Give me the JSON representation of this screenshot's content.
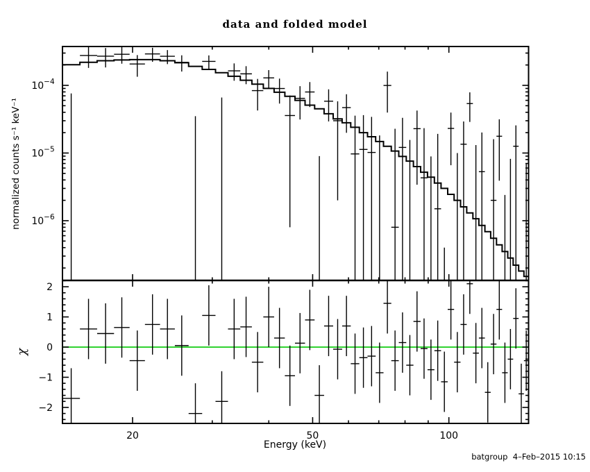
{
  "header": {
    "title": "data and folded model"
  },
  "footer": {
    "credit": "batgroup  4–Feb–2015 10:15"
  },
  "chart_data": {
    "type": "scatter",
    "subtype": "xspec-spectrum-with-chi-residuals",
    "title": "data and folded model",
    "xlabel": "Energy (keV)",
    "ylabel_top": "normalized counts s⁻¹ keV⁻¹",
    "ylabel_bottom": "χ",
    "x_scale": "log",
    "x_range_kev": [
      14,
      150
    ],
    "x_ticks_labeled": [
      20,
      50,
      100
    ],
    "x_ticks_minor": [
      30,
      40,
      60,
      70,
      80,
      90
    ],
    "y_top_scale": "log",
    "y_top_range": [
      1.31e-07,
      0.000375
    ],
    "y_top_decade_exponents": [
      -4,
      -5,
      -6
    ],
    "y_bottom_range": [
      -2.53,
      2.21
    ],
    "y_bottom_ticks_labeled": [
      -2,
      -1,
      0,
      1,
      2
    ],
    "y_bottom_minor_step": 0.2,
    "grid": "off",
    "legend": "none",
    "foreground_color": "#000000",
    "background_color": "#ffffff",
    "zero_line_color": "#00c800",
    "chi_error_halfwidth": 1.0,
    "series_description": {
      "model": "folded model, stepped histogram, top panel",
      "data": "spectrum data points, crosses with error bars, top panel",
      "chi": "(data-model)/error residuals, bottom panel"
    },
    "bins": {
      "e_lo": [
        14.0,
        15.3,
        16.7,
        18.2,
        19.7,
        21.3,
        23.0,
        24.8,
        26.6,
        28.5,
        30.5,
        32.5,
        34.6,
        36.7,
        38.9,
        41.1,
        43.4,
        45.7,
        48.1,
        50.5,
        53.0,
        55.5,
        58.1,
        60.7,
        63.4,
        66.1,
        68.9,
        71.7,
        74.6,
        77.5,
        80.5,
        83.5,
        86.6,
        89.7,
        92.9,
        96.1,
        99.4,
        102.7,
        106.1,
        109.5,
        113.0,
        116.5,
        120.1,
        123.7,
        127.4,
        131.1,
        134.9,
        138.7,
        142.6,
        146.5
      ],
      "e_hi": [
        15.3,
        16.7,
        18.2,
        19.7,
        21.3,
        23.0,
        24.8,
        26.6,
        28.5,
        30.5,
        32.5,
        34.6,
        36.7,
        38.9,
        41.1,
        43.4,
        45.7,
        48.1,
        50.5,
        53.0,
        55.5,
        58.1,
        60.7,
        63.4,
        66.1,
        68.9,
        71.7,
        74.6,
        77.5,
        80.5,
        83.5,
        86.6,
        89.7,
        92.9,
        96.1,
        99.4,
        102.7,
        106.1,
        109.5,
        113.0,
        116.5,
        120.1,
        123.7,
        127.4,
        131.1,
        134.9,
        138.7,
        142.6,
        146.5,
        150.0
      ],
      "model": [
        0.000202,
        0.000219,
        0.000231,
        0.000237,
        0.00024,
        0.00024,
        0.000231,
        0.000216,
        0.000191,
        0.000172,
        0.000154,
        0.000136,
        0.000119,
        0.000104,
        9e-05,
        7.9e-05,
        6.9e-05,
        6e-05,
        5.1e-05,
        4.5e-05,
        3.8e-05,
        3.2e-05,
        2.8e-05,
        2.4e-05,
        2e-05,
        1.74e-05,
        1.48e-05,
        1.26e-05,
        1.07e-05,
        8.9e-06,
        7.6e-06,
        6.3e-06,
        5.2e-06,
        4.4e-06,
        3.6e-06,
        3e-06,
        2.45e-06,
        2e-06,
        1.6e-06,
        1.3e-06,
        1.07e-06,
        8.5e-07,
        6.9e-07,
        5.5e-07,
        4.4e-07,
        3.5e-07,
        2.8e-07,
        2.2e-07,
        1.8e-07,
        1.5e-07
      ],
      "rate": [
        -0.000104,
        0.000276,
        0.00027,
        0.000288,
        0.000207,
        0.000291,
        0.000269,
        0.000219,
        -9.5e-05,
        0.000226,
        -4.4e-05,
        0.000164,
        0.000148,
        8.35e-05,
        0.000129,
        8.98e-05,
        3.58e-05,
        6.43e-05,
        7.98e-05,
        -5.1e-05,
        5.83e-05,
        3e-05,
        4.69e-05,
        9.7e-06,
        1.13e-05,
        1.02e-05,
        -4.8e-06,
        9.96e-05,
        8e-07,
        1.21e-05,
        -4.4e-06,
        2.29e-05,
        4.3e-06,
        -9.1e-06,
        1.5e-06,
        -1.66e-05,
        2.31e-05,
        -6e-06,
        1.35e-05,
        5.38e-05,
        -1.9e-06,
        5.3e-06,
        -2.11e-05,
        2e-06,
        1.77e-05,
        -1.11e-05,
        -5e-06,
        1.26e-05,
        -1.93e-05,
        -5.4e-06
      ],
      "err": [
        0.00018,
        9.5e-05,
        8.6e-05,
        7.9e-05,
        7.3e-05,
        6.8e-05,
        6.3e-05,
        5.9e-05,
        0.00013,
        5.1e-05,
        0.00011,
        4.7e-05,
        4.4e-05,
        4.1e-05,
        3.9e-05,
        3.6e-05,
        3.5e-05,
        3.3e-05,
        3.2e-05,
        6e-05,
        2.9e-05,
        2.8e-05,
        2.7e-05,
        2.6e-05,
        2.5e-05,
        2.4e-05,
        2.3e-05,
        6e-05,
        2.2e-05,
        2.1e-05,
        2e-05,
        1.95e-05,
        1.9e-05,
        1.8e-05,
        1.77e-05,
        1.7e-05,
        1.65e-05,
        1.6e-05,
        1.58e-05,
        2.5e-05,
        1.5e-05,
        1.48e-05,
        1.45e-05,
        1.4e-05,
        1.38e-05,
        1.35e-05,
        1.32e-05,
        1.3e-05,
        1.26e-05,
        1.23e-05
      ],
      "chi": [
        -1.7,
        0.6,
        0.45,
        0.65,
        -0.45,
        0.75,
        0.6,
        0.05,
        -2.2,
        1.05,
        -1.8,
        0.6,
        0.67,
        -0.5,
        1.0,
        0.3,
        -0.95,
        0.13,
        0.9,
        -1.6,
        0.7,
        -0.07,
        0.7,
        -0.55,
        -0.35,
        -0.3,
        -0.85,
        1.45,
        -0.45,
        0.15,
        -0.6,
        0.85,
        -0.05,
        -0.75,
        -0.12,
        -1.15,
        1.25,
        -0.5,
        0.75,
        2.1,
        -0.2,
        0.3,
        -1.5,
        0.1,
        1.25,
        -0.85,
        -0.4,
        0.95,
        -1.55,
        -0.45
      ]
    }
  }
}
